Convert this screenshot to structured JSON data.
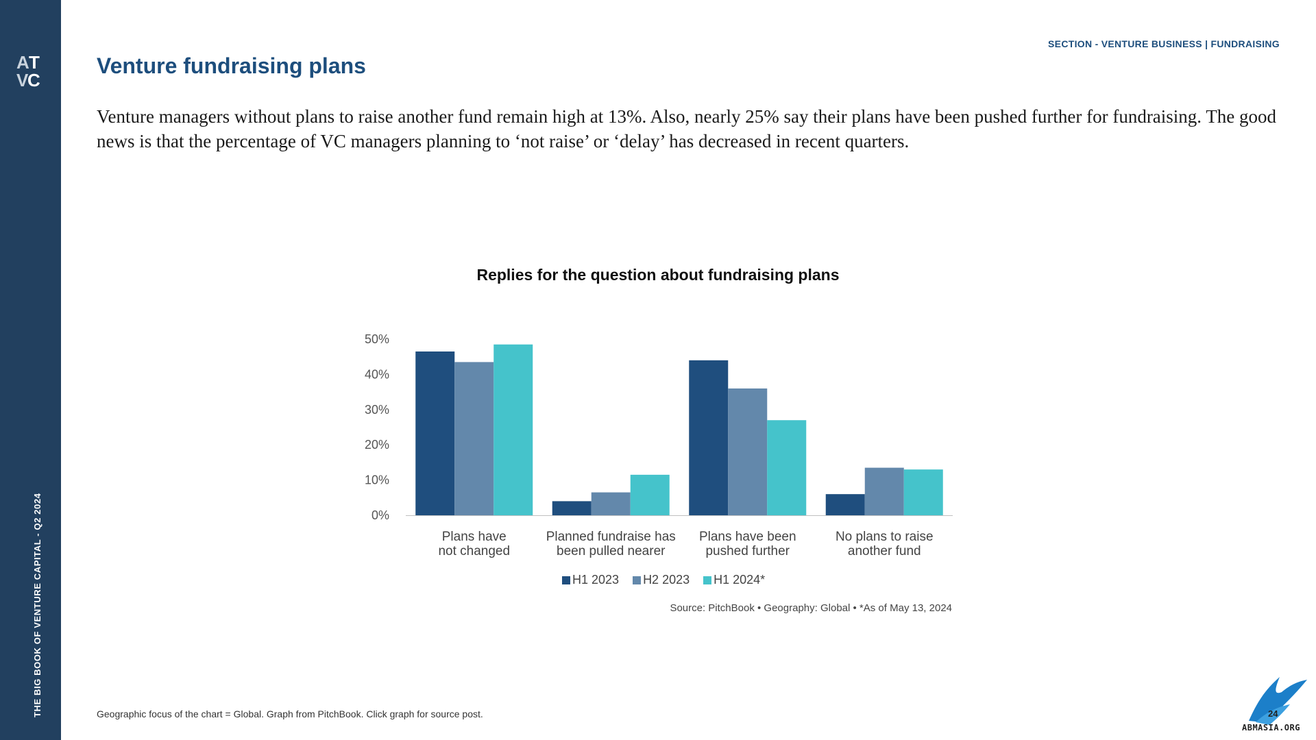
{
  "sidebar": {
    "vertical_text": "THE BIG BOOK OF VENTURE CAPITAL - Q2 2024",
    "logo_text": "ATVC"
  },
  "header": {
    "section_label": "SECTION - VENTURE BUSINESS | FUNDRAISING",
    "title": "Venture fundraising plans"
  },
  "intro": "Venture managers without plans to raise another fund remain high at 13%. Also, nearly 25% say their plans have been pushed further for fundraising. The good news is that the percentage of VC managers planning to ‘not raise’ or ‘delay’ has decreased in recent quarters.",
  "chart_data": {
    "type": "bar",
    "title": "Replies for the question about fundraising plans",
    "categories": [
      [
        "Plans have",
        "not changed"
      ],
      [
        "Planned fundraise has",
        "been pulled nearer"
      ],
      [
        "Plans have been",
        "pushed further"
      ],
      [
        "No plans to raise",
        "another fund"
      ]
    ],
    "series": [
      {
        "name": "H1 2023",
        "color": "#1f4e7e",
        "values": [
          46.5,
          4,
          44,
          6
        ]
      },
      {
        "name": "H2 2023",
        "color": "#6388ab",
        "values": [
          43.5,
          6.5,
          36,
          13.5
        ]
      },
      {
        "name": "H1 2024*",
        "color": "#45c3cb",
        "values": [
          48.5,
          11.5,
          27,
          13
        ]
      }
    ],
    "y_ticks": [
      "50%",
      "40%",
      "30%",
      "20%",
      "10%",
      "0%"
    ],
    "ylim": [
      0,
      50
    ],
    "legend_position": "bottom",
    "grid": false,
    "source": "Source: PitchBook  •  Geography: Global  •  *As of May 13, 2024"
  },
  "footer": {
    "note": "Geographic focus of the chart = Global. Graph from PitchBook. Click graph for source post.",
    "page_number": "24",
    "corner_text": "ABMASIA.ORG"
  }
}
